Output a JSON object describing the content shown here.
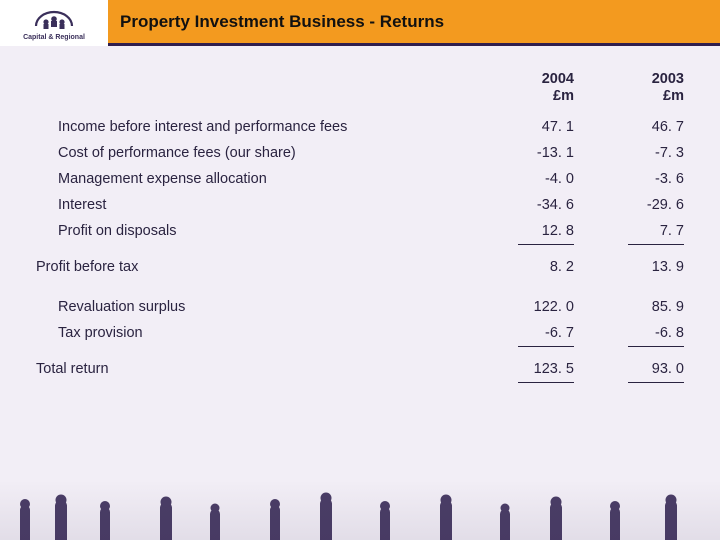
{
  "brand": {
    "name": "Capital & Regional",
    "logo_bg": "#ffffff",
    "logo_accent": "#3a2f5a"
  },
  "title": "Property Investment Business - Returns",
  "colors": {
    "header_bg": "#f39a1f",
    "header_border": "#2f1e4e",
    "page_bg": "#f2eef6",
    "text": "#2a2340",
    "silhouette": "#4a3d66"
  },
  "table": {
    "columns": [
      {
        "header_line1": "2004",
        "header_line2": "£m"
      },
      {
        "header_line1": "2003",
        "header_line2": "£m"
      }
    ],
    "sections": [
      {
        "rows": [
          {
            "label": "Income before interest and performance fees",
            "indent": true,
            "v2004": "47. 1",
            "v2003": "46. 7"
          },
          {
            "label": "Cost of performance fees (our share)",
            "indent": true,
            "v2004": "-13. 1",
            "v2003": "-7. 3"
          },
          {
            "label": "Management expense allocation",
            "indent": true,
            "v2004": "-4. 0",
            "v2003": "-3. 6"
          },
          {
            "label": "Interest",
            "indent": true,
            "v2004": "-34. 6",
            "v2003": "-29. 6"
          },
          {
            "label": "Profit on disposals",
            "indent": true,
            "v2004": "12. 8",
            "v2003": "7. 7"
          }
        ],
        "rule_after": true
      },
      {
        "rows": [
          {
            "label": "Profit before tax",
            "indent": false,
            "v2004": "8. 2",
            "v2003": "13. 9"
          }
        ],
        "rule_after": false,
        "gap_after": true
      },
      {
        "rows": [
          {
            "label": "Revaluation surplus",
            "indent": true,
            "v2004": "122. 0",
            "v2003": "85. 9"
          },
          {
            "label": "Tax provision",
            "indent": true,
            "v2004": "-6. 7",
            "v2003": "-6. 8"
          }
        ],
        "rule_after": true
      },
      {
        "rows": [
          {
            "label": "Total return",
            "indent": false,
            "v2004": "123. 5",
            "v2003": "93. 0"
          }
        ],
        "rule_after": true
      }
    ]
  }
}
